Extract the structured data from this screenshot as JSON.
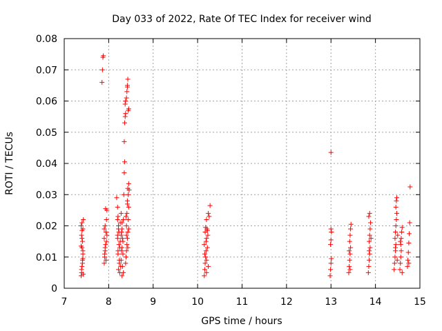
{
  "chart_data": {
    "type": "scatter",
    "title": "Day 033 of 2022, Rate Of TEC Index for receiver wind",
    "xlabel": "GPS time / hours",
    "ylabel": "ROTI / TECUs",
    "xlim": [
      7,
      15
    ],
    "ylim": [
      0,
      0.08
    ],
    "xticks": [
      7,
      8,
      9,
      10,
      11,
      12,
      13,
      14,
      15
    ],
    "xtick_labels": [
      "7",
      "8",
      "9",
      "10",
      "11",
      "12",
      "13",
      "14",
      "15"
    ],
    "yticks": [
      0,
      0.01,
      0.02,
      0.03,
      0.04,
      0.05,
      0.06,
      0.07,
      0.08
    ],
    "ytick_labels": [
      "0",
      "0.01",
      "0.02",
      "0.03",
      "0.04",
      "0.05",
      "0.06",
      "0.07",
      "0.08"
    ],
    "grid": true,
    "marker": "+",
    "series_color": "#ff0000",
    "series": [
      {
        "points": [
          [
            7.38,
            0.004
          ],
          [
            7.39,
            0.005
          ],
          [
            7.4,
            0.007
          ],
          [
            7.41,
            0.009
          ],
          [
            7.42,
            0.011
          ],
          [
            7.4,
            0.013
          ],
          [
            7.41,
            0.015
          ],
          [
            7.39,
            0.017
          ],
          [
            7.42,
            0.019
          ],
          [
            7.4,
            0.021
          ],
          [
            7.43,
            0.022
          ],
          [
            7.38,
            0.02
          ],
          [
            7.4,
            0.016
          ],
          [
            7.42,
            0.012
          ],
          [
            7.41,
            0.008
          ],
          [
            7.39,
            0.006
          ],
          [
            7.43,
            0.0045
          ],
          [
            7.4,
            0.0185
          ],
          [
            7.38,
            0.0135
          ],
          [
            7.42,
            0.0095
          ],
          [
            7.85,
            0.066
          ],
          [
            7.86,
            0.07
          ],
          [
            7.87,
            0.074
          ],
          [
            7.88,
            0.0745
          ],
          [
            7.9,
            0.008
          ],
          [
            7.91,
            0.01
          ],
          [
            7.92,
            0.012
          ],
          [
            7.93,
            0.014
          ],
          [
            7.9,
            0.016
          ],
          [
            7.94,
            0.018
          ],
          [
            7.92,
            0.02
          ],
          [
            7.95,
            0.022
          ],
          [
            7.96,
            0.025
          ],
          [
            7.93,
            0.0255
          ],
          [
            7.91,
            0.011
          ],
          [
            7.95,
            0.015
          ],
          [
            7.9,
            0.019
          ],
          [
            7.94,
            0.009
          ],
          [
            7.92,
            0.013
          ],
          [
            7.96,
            0.017
          ],
          [
            8.18,
            0.029
          ],
          [
            8.2,
            0.026
          ],
          [
            8.21,
            0.023
          ],
          [
            8.22,
            0.02
          ],
          [
            8.2,
            0.017
          ],
          [
            8.23,
            0.014
          ],
          [
            8.21,
            0.011
          ],
          [
            8.24,
            0.008
          ],
          [
            8.22,
            0.006
          ],
          [
            8.25,
            0.005
          ],
          [
            8.2,
            0.022
          ],
          [
            8.23,
            0.018
          ],
          [
            8.26,
            0.015
          ],
          [
            8.21,
            0.012
          ],
          [
            8.24,
            0.009
          ],
          [
            8.27,
            0.007
          ],
          [
            8.2,
            0.016
          ],
          [
            8.25,
            0.013
          ],
          [
            8.22,
            0.019
          ],
          [
            8.26,
            0.021
          ],
          [
            8.28,
            0.024
          ],
          [
            8.3,
            0.021
          ],
          [
            8.29,
            0.018
          ],
          [
            8.31,
            0.016
          ],
          [
            8.3,
            0.013
          ],
          [
            8.32,
            0.011
          ],
          [
            8.28,
            0.009
          ],
          [
            8.31,
            0.007
          ],
          [
            8.33,
            0.005
          ],
          [
            8.3,
            0.004
          ],
          [
            8.29,
            0.012
          ],
          [
            8.32,
            0.015
          ],
          [
            8.3,
            0.019
          ],
          [
            8.33,
            0.022
          ],
          [
            8.28,
            0.017
          ],
          [
            8.34,
            0.03
          ],
          [
            8.35,
            0.037
          ],
          [
            8.36,
            0.0405
          ],
          [
            8.35,
            0.047
          ],
          [
            8.36,
            0.053
          ],
          [
            8.37,
            0.055
          ],
          [
            8.38,
            0.056
          ],
          [
            8.37,
            0.059
          ],
          [
            8.38,
            0.06
          ],
          [
            8.4,
            0.061
          ],
          [
            8.41,
            0.063
          ],
          [
            8.42,
            0.065
          ],
          [
            8.43,
            0.067
          ],
          [
            8.44,
            0.057
          ],
          [
            8.45,
            0.0575
          ],
          [
            8.42,
            0.0645
          ],
          [
            8.38,
            0.008
          ],
          [
            8.39,
            0.01
          ],
          [
            8.4,
            0.012
          ],
          [
            8.41,
            0.014
          ],
          [
            8.42,
            0.016
          ],
          [
            8.43,
            0.018
          ],
          [
            8.4,
            0.02
          ],
          [
            8.44,
            0.022
          ],
          [
            8.41,
            0.024
          ],
          [
            8.45,
            0.026
          ],
          [
            8.42,
            0.028
          ],
          [
            8.44,
            0.03
          ],
          [
            8.43,
            0.032
          ],
          [
            8.45,
            0.0335
          ],
          [
            8.46,
            0.0315
          ],
          [
            8.4,
            0.017
          ],
          [
            8.43,
            0.013
          ],
          [
            8.45,
            0.019
          ],
          [
            8.39,
            0.023
          ],
          [
            8.42,
            0.027
          ],
          [
            10.15,
            0.004
          ],
          [
            10.16,
            0.006
          ],
          [
            10.17,
            0.008
          ],
          [
            10.18,
            0.01
          ],
          [
            10.19,
            0.012
          ],
          [
            10.15,
            0.014
          ],
          [
            10.2,
            0.016
          ],
          [
            10.17,
            0.018
          ],
          [
            10.21,
            0.019
          ],
          [
            10.18,
            0.0195
          ],
          [
            10.16,
            0.011
          ],
          [
            10.2,
            0.009
          ],
          [
            10.22,
            0.013
          ],
          [
            10.19,
            0.015
          ],
          [
            10.23,
            0.017
          ],
          [
            10.2,
            0.005
          ],
          [
            10.24,
            0.007
          ],
          [
            10.22,
            0.0185
          ],
          [
            10.2,
            0.022
          ],
          [
            10.24,
            0.024
          ],
          [
            10.26,
            0.023
          ],
          [
            10.28,
            0.0265
          ],
          [
            13.0,
            0.0435
          ],
          [
            12.98,
            0.004
          ],
          [
            12.99,
            0.006
          ],
          [
            13.0,
            0.008
          ],
          [
            13.01,
            0.0095
          ],
          [
            12.99,
            0.014
          ],
          [
            13.0,
            0.0155
          ],
          [
            13.01,
            0.018
          ],
          [
            13.0,
            0.019
          ],
          [
            13.4,
            0.005
          ],
          [
            13.41,
            0.007
          ],
          [
            13.42,
            0.009
          ],
          [
            13.43,
            0.011
          ],
          [
            13.44,
            0.013
          ],
          [
            13.42,
            0.015
          ],
          [
            13.43,
            0.017
          ],
          [
            13.44,
            0.019
          ],
          [
            13.45,
            0.0205
          ],
          [
            13.41,
            0.012
          ],
          [
            13.43,
            0.006
          ],
          [
            13.84,
            0.005
          ],
          [
            13.85,
            0.007
          ],
          [
            13.86,
            0.009
          ],
          [
            13.87,
            0.011
          ],
          [
            13.88,
            0.013
          ],
          [
            13.86,
            0.015
          ],
          [
            13.87,
            0.017
          ],
          [
            13.88,
            0.019
          ],
          [
            13.89,
            0.021
          ],
          [
            13.85,
            0.023
          ],
          [
            13.87,
            0.024
          ],
          [
            13.9,
            0.016
          ],
          [
            13.86,
            0.012
          ],
          [
            14.42,
            0.006
          ],
          [
            14.43,
            0.008
          ],
          [
            14.44,
            0.01
          ],
          [
            14.45,
            0.012
          ],
          [
            14.46,
            0.014
          ],
          [
            14.44,
            0.016
          ],
          [
            14.45,
            0.018
          ],
          [
            14.46,
            0.02
          ],
          [
            14.47,
            0.022
          ],
          [
            14.48,
            0.024
          ],
          [
            14.46,
            0.026
          ],
          [
            14.47,
            0.028
          ],
          [
            14.48,
            0.029
          ],
          [
            14.5,
            0.017
          ],
          [
            14.45,
            0.013
          ],
          [
            14.49,
            0.009
          ],
          [
            14.55,
            0.006
          ],
          [
            14.56,
            0.008
          ],
          [
            14.57,
            0.01
          ],
          [
            14.58,
            0.012
          ],
          [
            14.57,
            0.014
          ],
          [
            14.58,
            0.016
          ],
          [
            14.59,
            0.018
          ],
          [
            14.6,
            0.0195
          ],
          [
            14.56,
            0.015
          ],
          [
            14.6,
            0.005
          ],
          [
            14.72,
            0.007
          ],
          [
            14.73,
            0.009
          ],
          [
            14.74,
            0.0115
          ],
          [
            14.75,
            0.0145
          ],
          [
            14.76,
            0.0175
          ],
          [
            14.77,
            0.021
          ],
          [
            14.78,
            0.0325
          ],
          [
            14.75,
            0.008
          ]
        ]
      }
    ]
  }
}
